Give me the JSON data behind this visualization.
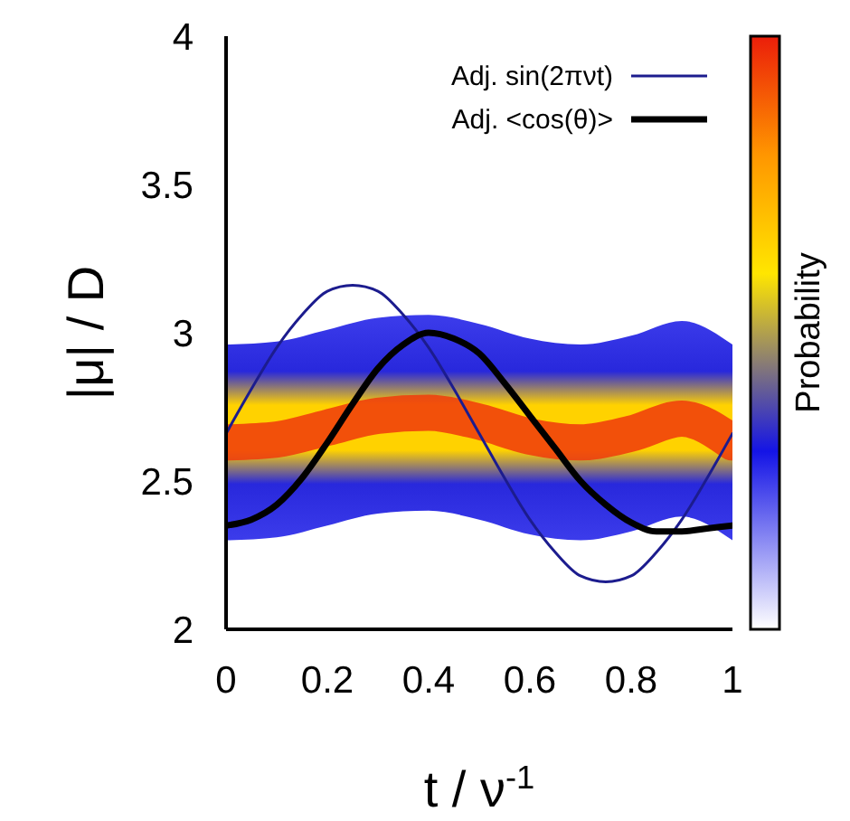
{
  "chart_data": {
    "type": "line",
    "xlabel": "t / ν$^{-1}$",
    "ylabel": "|μ| / D",
    "clabel": "Probability",
    "xlim": [
      0,
      1
    ],
    "xticks": [
      0,
      0.2,
      0.4,
      0.6,
      0.8,
      1
    ],
    "ylim": [
      2,
      4
    ],
    "yticks": [
      2,
      2.5,
      3,
      3.5,
      4
    ],
    "series": [
      {
        "color": "#f03a0c",
        "x": [
          0,
          0.1,
          0.2,
          0.3,
          0.4,
          0.5,
          0.6,
          0.7,
          0.8,
          0.9,
          1
        ],
        "values": [
          2.63,
          2.64,
          2.68,
          2.72,
          2.73,
          2.7,
          2.65,
          2.63,
          2.66,
          2.71,
          2.63
        ],
        "lower": [
          2.3,
          2.31,
          2.35,
          2.39,
          2.4,
          2.37,
          2.32,
          2.3,
          2.33,
          2.38,
          2.3
        ],
        "upper": [
          2.96,
          2.97,
          3.01,
          3.05,
          3.06,
          3.03,
          2.98,
          2.96,
          2.99,
          3.04,
          2.96
        ]
      },
      {
        "name": "Adj. sin(2πνt)",
        "color": "#1c1c8e",
        "x": [
          0,
          0.05,
          0.1,
          0.15,
          0.2,
          0.25,
          0.3,
          0.35,
          0.4,
          0.45,
          0.5,
          0.55,
          0.6,
          0.65,
          0.7,
          0.75,
          0.8,
          0.85,
          0.9,
          0.95,
          1
        ],
        "values": [
          2.66,
          2.81,
          2.95,
          3.06,
          3.14,
          3.16,
          3.14,
          3.06,
          2.95,
          2.81,
          2.66,
          2.51,
          2.37,
          2.26,
          2.18,
          2.16,
          2.18,
          2.26,
          2.37,
          2.51,
          2.66
        ]
      },
      {
        "name": "Adj. <cos(θ)>",
        "color": "#000000",
        "x": [
          0,
          0.05,
          0.1,
          0.15,
          0.2,
          0.25,
          0.3,
          0.35,
          0.4,
          0.45,
          0.5,
          0.55,
          0.6,
          0.65,
          0.7,
          0.75,
          0.8,
          0.85,
          0.9,
          0.95,
          1
        ],
        "values": [
          2.35,
          2.37,
          2.42,
          2.51,
          2.63,
          2.76,
          2.88,
          2.96,
          3.0,
          2.98,
          2.93,
          2.83,
          2.72,
          2.61,
          2.5,
          2.42,
          2.36,
          2.33,
          2.33,
          2.34,
          2.35
        ]
      }
    ],
    "legend": "top right",
    "marker": "none",
    "line_style": "solid"
  }
}
